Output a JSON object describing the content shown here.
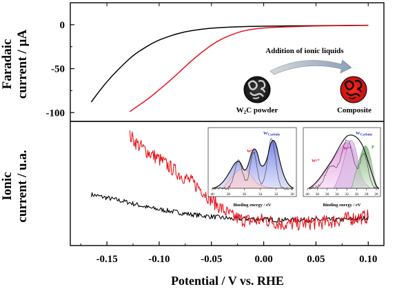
{
  "chart_data": [
    {
      "type": "line",
      "panel": "top",
      "ylabel": [
        "Faradaic",
        "current / µA"
      ],
      "ylim": [
        -110,
        25
      ],
      "yticks": [
        "0",
        "-50",
        "-100"
      ],
      "xlim": [
        -0.185,
        0.115
      ],
      "series": [
        {
          "color": "#000000",
          "x": [
            -0.165,
            -0.155,
            -0.145,
            -0.135,
            -0.125,
            -0.115,
            -0.105,
            -0.095,
            -0.085,
            -0.075,
            -0.065,
            -0.055,
            -0.045,
            -0.035,
            -0.025,
            -0.015,
            -0.005,
            0.005,
            0.02,
            0.04,
            0.06,
            0.08,
            0.1
          ],
          "y": [
            -88,
            -72,
            -58,
            -46,
            -35,
            -27,
            -20,
            -15,
            -11,
            -8,
            -6,
            -4.5,
            -3.5,
            -2.8,
            -2.3,
            -2,
            -1.8,
            -1.6,
            -1.4,
            -1.2,
            -1,
            -0.8,
            -0.6
          ]
        },
        {
          "color": "#e8141c",
          "x": [
            -0.128,
            -0.12,
            -0.11,
            -0.1,
            -0.09,
            -0.08,
            -0.07,
            -0.06,
            -0.05,
            -0.04,
            -0.03,
            -0.02,
            -0.01,
            0.0,
            0.02,
            0.04,
            0.06,
            0.08,
            0.1
          ],
          "y": [
            -99,
            -92,
            -84,
            -74,
            -64,
            -53,
            -42,
            -32,
            -23,
            -16,
            -11,
            -7,
            -5,
            -3.5,
            -2.5,
            -1.8,
            -1.3,
            -1,
            -0.8
          ]
        }
      ]
    },
    {
      "type": "line",
      "panel": "bottom",
      "ylabel": [
        "Ionic",
        "current / u.a."
      ],
      "xlabel": "Potential / V vs. RHE",
      "xlim": [
        -0.185,
        0.115
      ],
      "xticks": [
        "-0.15",
        "-0.10",
        "-0.05",
        "0.00",
        "0.05",
        "0.10"
      ],
      "xtick_values": [
        -0.15,
        -0.1,
        -0.05,
        0.0,
        0.05,
        0.1
      ],
      "ylim": [
        0,
        1
      ],
      "series": [
        {
          "color": "#000000",
          "noisy": true,
          "x": [
            -0.165,
            -0.15,
            -0.13,
            -0.11,
            -0.09,
            -0.07,
            -0.05,
            -0.03,
            -0.01,
            0.01,
            0.03,
            0.05,
            0.07,
            0.09,
            0.1
          ],
          "y": [
            0.4,
            0.37,
            0.33,
            0.28,
            0.25,
            0.22,
            0.2,
            0.18,
            0.18,
            0.17,
            0.17,
            0.17,
            0.17,
            0.18,
            0.19
          ]
        },
        {
          "color": "#e8141c",
          "noisy": true,
          "x": [
            -0.128,
            -0.12,
            -0.11,
            -0.1,
            -0.09,
            -0.08,
            -0.07,
            -0.06,
            -0.05,
            -0.04,
            -0.03,
            -0.02,
            -0.01,
            0.0,
            0.02,
            0.04,
            0.06,
            0.08,
            0.1
          ],
          "y": [
            0.93,
            0.85,
            0.78,
            0.72,
            0.65,
            0.58,
            0.52,
            0.45,
            0.35,
            0.27,
            0.2,
            0.17,
            0.16,
            0.17,
            0.13,
            0.14,
            0.15,
            0.18,
            0.2
          ]
        }
      ]
    }
  ],
  "annotations": {
    "addition": "Addition of ionic liquids",
    "powder_label_w": "W",
    "powder_label_sub": "2",
    "powder_label_rest": "C powder",
    "composite_label": "Composite"
  },
  "xps_insets": [
    {
      "xlabel": "Binding energy / eV",
      "xticks": [
        "40",
        "38",
        "36",
        "34",
        "32",
        "30"
      ],
      "labels": {
        "w6": "W⁶⁺",
        "wc": "W",
        "wc_sub": "Carbide"
      }
    },
    {
      "xlabel": "Binding energy / eV",
      "xticks": [
        "40",
        "38",
        "36",
        "34",
        "32",
        "30",
        "28",
        "26"
      ],
      "labels": {
        "w6": "W⁶⁺",
        "w4": "W⁴⁺",
        "wc": "W",
        "wc_sub": "Carbide",
        "p": "P"
      }
    }
  ]
}
